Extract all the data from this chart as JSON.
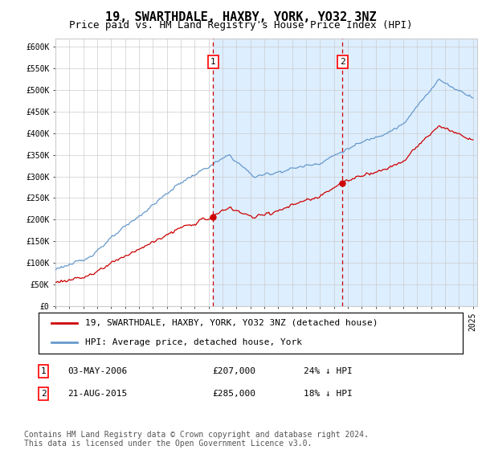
{
  "title": "19, SWARTHDALE, HAXBY, YORK, YO32 3NZ",
  "subtitle": "Price paid vs. HM Land Registry's House Price Index (HPI)",
  "ylim": [
    0,
    620000
  ],
  "yticks": [
    0,
    50000,
    100000,
    150000,
    200000,
    250000,
    300000,
    350000,
    400000,
    450000,
    500000,
    550000,
    600000
  ],
  "ytick_labels": [
    "£0",
    "£50K",
    "£100K",
    "£150K",
    "£200K",
    "£250K",
    "£300K",
    "£350K",
    "£400K",
    "£450K",
    "£500K",
    "£550K",
    "£600K"
  ],
  "xlim_start": 1995.0,
  "xlim_end": 2025.3,
  "xticks": [
    1995,
    1996,
    1997,
    1998,
    1999,
    2000,
    2001,
    2002,
    2003,
    2004,
    2005,
    2006,
    2007,
    2008,
    2009,
    2010,
    2011,
    2012,
    2013,
    2014,
    2015,
    2016,
    2017,
    2018,
    2019,
    2020,
    2021,
    2022,
    2023,
    2024,
    2025
  ],
  "sale1_x": 2006.333,
  "sale1_y": 207000,
  "sale1_label": "1",
  "sale1_date": "03-MAY-2006",
  "sale1_price": "£207,000",
  "sale1_hpi": "24% ↓ HPI",
  "sale2_x": 2015.625,
  "sale2_y": 285000,
  "sale2_label": "2",
  "sale2_date": "21-AUG-2015",
  "sale2_price": "£285,000",
  "sale2_hpi": "18% ↓ HPI",
  "legend_line1": "19, SWARTHDALE, HAXBY, YORK, YO32 3NZ (detached house)",
  "legend_line2": "HPI: Average price, detached house, York",
  "footnote": "Contains HM Land Registry data © Crown copyright and database right 2024.\nThis data is licensed under the Open Government Licence v3.0.",
  "sale_color": "#cc0000",
  "hpi_color": "#6699cc",
  "shaded_color": "#ddeeff",
  "hatch_color": "#c8d8e8",
  "vline_color": "#cc0000",
  "background_color": "#ffffff",
  "grid_color": "#cccccc",
  "title_fontsize": 11,
  "subtitle_fontsize": 9,
  "tick_fontsize": 7,
  "legend_fontsize": 8,
  "footnote_fontsize": 7
}
